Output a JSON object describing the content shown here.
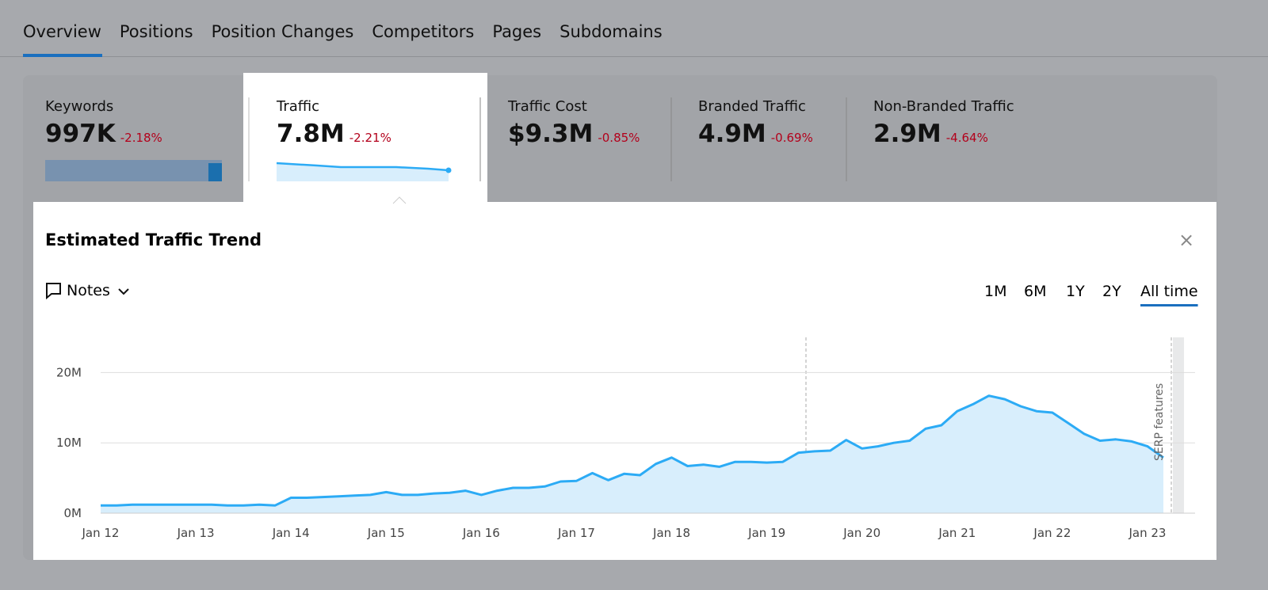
{
  "tabs": [
    "Overview",
    "Positions",
    "Position Changes",
    "Competitors",
    "Pages",
    "Subdomains"
  ],
  "metrics": [
    {
      "label": "Keywords",
      "value": "997K",
      "change": "-2.18%"
    },
    {
      "label": "Traffic",
      "value": "7.8M",
      "change": "-2.21%"
    },
    {
      "label": "Traffic Cost",
      "value": "$9.3M",
      "change": "-0.85%"
    },
    {
      "label": "Branded Traffic",
      "value": "4.9M",
      "change": "-0.69%"
    },
    {
      "label": "Non-Branded Traffic",
      "value": "2.9M",
      "change": "-4.64%"
    }
  ],
  "panel": {
    "title": "Estimated Traffic Trend",
    "notes": "Notes",
    "ranges": [
      "1M",
      "6M",
      "1Y",
      "2Y",
      "All time"
    ],
    "close": "×"
  },
  "chart_data": {
    "type": "area",
    "categories": [
      "Jan 12",
      null,
      null,
      null,
      null,
      null,
      "Jan 13",
      null,
      null,
      null,
      null,
      null,
      "Jan 14",
      null,
      null,
      null,
      null,
      null,
      "Jan 15",
      null,
      null,
      null,
      null,
      null,
      "Jan 16",
      null,
      null,
      null,
      null,
      null,
      "Jan 17",
      null,
      null,
      null,
      null,
      null,
      "Jan 18",
      null,
      null,
      null,
      null,
      null,
      "Jan 19",
      null,
      null,
      null,
      null,
      null,
      "Jan 20",
      null,
      null,
      null,
      null,
      null,
      "Jan 21",
      null,
      null,
      null,
      null,
      null,
      "Jan 22",
      null,
      null,
      null,
      null,
      null,
      "Jan 23",
      null
    ],
    "values": [
      1.1,
      1.1,
      1.2,
      1.2,
      1.2,
      1.2,
      1.2,
      1.2,
      1.1,
      1.1,
      1.2,
      1.1,
      2.2,
      2.2,
      2.3,
      2.4,
      2.5,
      2.6,
      3.0,
      2.6,
      2.6,
      2.8,
      2.9,
      3.2,
      2.6,
      3.2,
      3.6,
      3.6,
      3.8,
      4.5,
      4.6,
      5.7,
      4.7,
      5.6,
      5.4,
      7.0,
      7.9,
      6.7,
      6.9,
      6.6,
      7.3,
      7.3,
      7.2,
      7.3,
      8.6,
      8.8,
      8.9,
      10.4,
      9.2,
      9.5,
      10.0,
      10.3,
      12.0,
      12.5,
      14.5,
      15.5,
      16.7,
      16.2,
      15.2,
      14.5,
      14.3,
      12.8,
      11.3,
      10.3,
      10.5,
      10.2,
      9.5,
      7.9
    ],
    "color": "#2cabf5",
    "ylim": [
      0,
      25
    ],
    "yticks": [
      {
        "value": 0,
        "label": "0M"
      },
      {
        "value": 10,
        "label": "10M"
      },
      {
        "value": 20,
        "label": "20M"
      }
    ],
    "grid": true,
    "annotation": "SERP features"
  }
}
